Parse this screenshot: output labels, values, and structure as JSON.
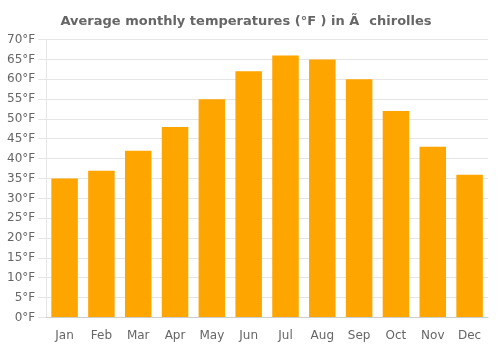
{
  "chart_data": {
    "type": "bar",
    "title": "Average monthly temperatures (°F ) in Ãchirolles",
    "categories": [
      "Jan",
      "Feb",
      "Mar",
      "Apr",
      "May",
      "Jun",
      "Jul",
      "Aug",
      "Sep",
      "Oct",
      "Nov",
      "Dec"
    ],
    "values": [
      35,
      37,
      42,
      48,
      55,
      62,
      66,
      65,
      60,
      52,
      43,
      36
    ],
    "color": "#FFA500",
    "ylim": [
      0,
      70
    ],
    "yticks": [
      {
        "value": 0,
        "label": "0°F"
      },
      {
        "value": 5,
        "label": "5°F"
      },
      {
        "value": 10,
        "label": "10°F"
      },
      {
        "value": 15,
        "label": "15°F"
      },
      {
        "value": 20,
        "label": "20°F"
      },
      {
        "value": 25,
        "label": "25°F"
      },
      {
        "value": 30,
        "label": "30°F"
      },
      {
        "value": 35,
        "label": "35°F"
      },
      {
        "value": 40,
        "label": "40°F"
      },
      {
        "value": 45,
        "label": "45°F"
      },
      {
        "value": 50,
        "label": "50°F"
      },
      {
        "value": 55,
        "label": "55°F"
      },
      {
        "value": 60,
        "label": "60°F"
      },
      {
        "value": 65,
        "label": "65°F"
      },
      {
        "value": 70,
        "label": "70°F"
      }
    ],
    "grid": "y"
  }
}
